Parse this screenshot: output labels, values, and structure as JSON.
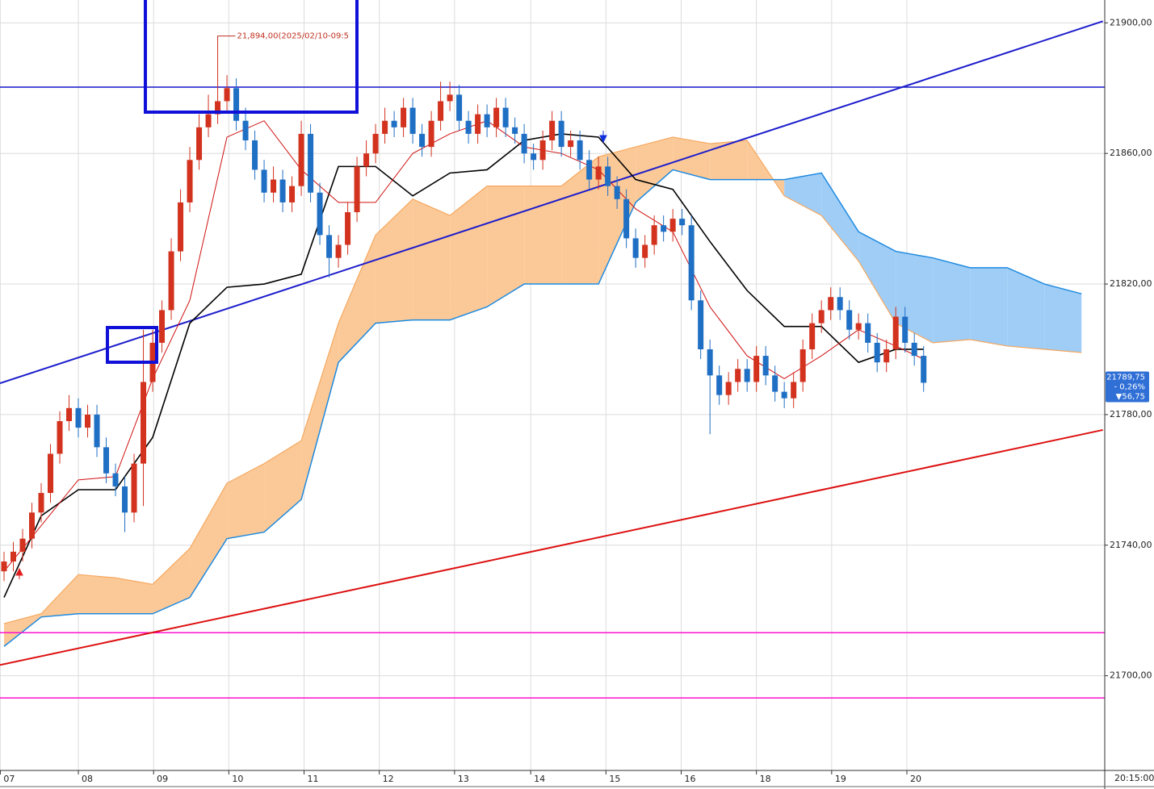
{
  "chart_data": {
    "type": "candlestick",
    "up_color": "#d2321e",
    "down_color": "#1f6fc4",
    "open": [
      21732,
      21735,
      21738,
      21742,
      21750,
      21756,
      21768,
      21778,
      21782,
      21776,
      21780,
      21770,
      21762,
      21758,
      21750,
      21765,
      21790,
      21802,
      21812,
      21830,
      21845,
      21858,
      21868,
      21872,
      21876,
      21880,
      21870,
      21864,
      21855,
      21848,
      21852,
      21845,
      21850,
      21866,
      21848,
      21835,
      21828,
      21832,
      21842,
      21856,
      21860,
      21866,
      21870,
      21868,
      21874,
      21866,
      21862,
      21870,
      21876,
      21878,
      21870,
      21866,
      21872,
      21868,
      21874,
      21868,
      21866,
      21860,
      21858,
      21864,
      21870,
      21862,
      21864,
      21858,
      21852,
      21856,
      21850,
      21846,
      21834,
      21828,
      21832,
      21838,
      21836,
      21840,
      21838,
      21815,
      21800,
      21792,
      21786,
      21790,
      21794,
      21790,
      21798,
      21792,
      21787,
      21785,
      21790,
      21800,
      21808,
      21812,
      21816,
      21812,
      21806,
      21808,
      21802,
      21796,
      21800,
      21810,
      21802,
      21798
    ],
    "high": [
      21738,
      21741,
      21745,
      21753,
      21759,
      21771,
      21781,
      21786,
      21785,
      21783,
      21783,
      21773,
      21765,
      21761,
      21768,
      21806,
      21806,
      21815,
      21834,
      21849,
      21862,
      21872,
      21878,
      21894,
      21884,
      21883,
      21874,
      21867,
      21858,
      21856,
      21855,
      21853,
      21870,
      21869,
      21851,
      21838,
      21835,
      21845,
      21859,
      21864,
      21869,
      21874,
      21873,
      21877,
      21877,
      21869,
      21873,
      21882,
      21882,
      21881,
      21873,
      21875,
      21875,
      21877,
      21877,
      21871,
      21869,
      21863,
      21867,
      21873,
      21873,
      21867,
      21867,
      21861,
      21859,
      21859,
      21853,
      21849,
      21837,
      21835,
      21841,
      21841,
      21843,
      21843,
      21841,
      21818,
      21803,
      21795,
      21793,
      21797,
      21797,
      21801,
      21801,
      21795,
      21790,
      21793,
      21803,
      21811,
      21815,
      21819,
      21819,
      21815,
      21811,
      21811,
      21805,
      21803,
      21813,
      21813,
      21805,
      21801
    ],
    "low": [
      21729,
      21732,
      21735,
      21739,
      21747,
      21753,
      21765,
      21775,
      21773,
      21773,
      21767,
      21759,
      21755,
      21744,
      21747,
      21752,
      21787,
      21799,
      21809,
      21827,
      21842,
      21855,
      21865,
      21869,
      21873,
      21867,
      21861,
      21852,
      21845,
      21845,
      21842,
      21842,
      21847,
      21845,
      21832,
      21822,
      21825,
      21829,
      21839,
      21853,
      21857,
      21863,
      21865,
      21865,
      21863,
      21859,
      21859,
      21867,
      21873,
      21867,
      21863,
      21863,
      21865,
      21865,
      21865,
      21863,
      21857,
      21855,
      21855,
      21861,
      21859,
      21859,
      21855,
      21849,
      21849,
      21847,
      21843,
      21831,
      21825,
      21825,
      21829,
      21833,
      21833,
      21835,
      21812,
      21797,
      21774,
      21783,
      21783,
      21787,
      21787,
      21787,
      21789,
      21784,
      21782,
      21782,
      21787,
      21797,
      21805,
      21809,
      21809,
      21803,
      21803,
      21799,
      21793,
      21793,
      21797,
      21799,
      21795,
      21787
    ],
    "close": [
      21735,
      21738,
      21742,
      21750,
      21756,
      21768,
      21778,
      21782,
      21776,
      21780,
      21770,
      21762,
      21758,
      21750,
      21765,
      21790,
      21802,
      21812,
      21830,
      21845,
      21858,
      21868,
      21872,
      21876,
      21880,
      21870,
      21864,
      21855,
      21848,
      21852,
      21845,
      21850,
      21866,
      21848,
      21835,
      21828,
      21832,
      21842,
      21856,
      21860,
      21866,
      21870,
      21868,
      21874,
      21866,
      21862,
      21870,
      21876,
      21878,
      21870,
      21866,
      21872,
      21868,
      21874,
      21868,
      21866,
      21860,
      21858,
      21864,
      21870,
      21862,
      21864,
      21858,
      21852,
      21856,
      21850,
      21846,
      21834,
      21828,
      21832,
      21838,
      21836,
      21840,
      21838,
      21815,
      21800,
      21792,
      21786,
      21790,
      21794,
      21790,
      21798,
      21792,
      21787,
      21785,
      21790,
      21800,
      21808,
      21812,
      21816,
      21812,
      21806,
      21808,
      21802,
      21796,
      21800,
      21810,
      21802,
      21798,
      21789.75
    ],
    "overlays": [
      {
        "color": "#000000",
        "x": [
          0,
          4,
          8,
          12,
          16,
          20,
          24,
          28,
          32,
          36,
          40,
          44,
          48,
          52,
          56,
          60,
          64,
          68,
          72,
          76,
          80,
          84,
          88,
          92,
          96,
          99
        ],
        "values": [
          21724,
          21749,
          21757,
          21757,
          21773,
          21808,
          21819,
          21820,
          21823,
          21856,
          21856,
          21847,
          21854,
          21855,
          21864,
          21866,
          21865,
          21852,
          21849,
          21833,
          21818,
          21807,
          21807,
          21796,
          21800,
          21800
        ]
      },
      {
        "color": "#d01010",
        "x": [
          0,
          4,
          8,
          12,
          16,
          20,
          24,
          28,
          32,
          36,
          40,
          44,
          48,
          52,
          56,
          60,
          64,
          68,
          72,
          76,
          80,
          84,
          88,
          92,
          96,
          99
        ],
        "values": [
          21732,
          21746,
          21760,
          21761,
          21791,
          21815,
          21865,
          21870,
          21855,
          21845,
          21845,
          21860,
          21866,
          21870,
          21862,
          21860,
          21855,
          21843,
          21836,
          21813,
          21798,
          21791,
          21798,
          21806,
          21801,
          21797
        ]
      }
    ],
    "cloud": {
      "x": [
        0,
        4,
        8,
        12,
        16,
        20,
        24,
        28,
        32,
        36,
        40,
        44,
        48,
        52,
        56,
        60,
        64,
        68,
        72,
        76,
        80,
        84,
        88,
        92,
        96,
        100,
        104,
        108,
        112,
        116
      ],
      "span_a": [
        21716,
        21719,
        21731,
        21730,
        21728,
        21739,
        21759,
        21765,
        21772,
        21808,
        21835,
        21846,
        21841,
        21850,
        21850,
        21850,
        21859,
        21862,
        21865,
        21863,
        21864,
        21847,
        21841,
        21827,
        21808,
        21802,
        21803,
        21801,
        21800,
        21799
      ],
      "span_b": [
        21709,
        21718,
        21719,
        21719,
        21719,
        21724,
        21742,
        21744,
        21754,
        21796,
        21808,
        21809,
        21809,
        21813,
        21820,
        21820,
        21820,
        21845,
        21855,
        21852,
        21852,
        21852,
        21854,
        21836,
        21830,
        21828,
        21825,
        21825,
        21820,
        21817
      ],
      "a_color": "#f5a860",
      "b_color": "#1e8ae0",
      "a_fill": "#fbc997",
      "b_fill": "#9fcdf6"
    },
    "hlines": [
      {
        "value": 21880.3,
        "color": "#1414c8"
      },
      {
        "value": 21713.2,
        "color": "#ff10d0"
      },
      {
        "value": 21693.2,
        "color": "#ff10d0"
      }
    ],
    "trendlines": [
      {
        "x": [
          -0.435,
          118.3
        ],
        "values": [
          21789.6,
          21900.5
        ],
        "color": "#1c1ccc"
      },
      {
        "x": [
          -0.435,
          118.3
        ],
        "values": [
          21703.3,
          21775.3
        ],
        "color": "#dd1111"
      }
    ],
    "annotation": "21,894,00(2025/02/10-09:5",
    "price_tag": [
      "21789,75",
      "- 0,26%",
      "▼56,75"
    ],
    "xlim": [
      -0.435,
      118.5
    ],
    "ylim": [
      21671,
      21907
    ],
    "yticks": [
      {
        "value": 21700,
        "label": "21700,00"
      },
      {
        "value": 21740,
        "label": "21740,00"
      },
      {
        "value": 21780,
        "label": "21780,00"
      },
      {
        "value": 21820,
        "label": "21820,00"
      },
      {
        "value": 21860,
        "label": "21860,00"
      },
      {
        "value": 21900,
        "label": "21900,00"
      }
    ],
    "xticks": [
      {
        "value": -0.4,
        "label": "07"
      },
      {
        "value": 8,
        "label": "08"
      },
      {
        "value": 16.1,
        "label": "09"
      },
      {
        "value": 24.2,
        "label": "10"
      },
      {
        "value": 32.3,
        "label": "11"
      },
      {
        "value": 40.4,
        "label": "12"
      },
      {
        "value": 48.5,
        "label": "13"
      },
      {
        "value": 56.7,
        "label": "14"
      },
      {
        "value": 64.8,
        "label": "15"
      },
      {
        "value": 72.9,
        "label": "16"
      },
      {
        "value": 81,
        "label": "18"
      },
      {
        "value": 89.1,
        "label": "19"
      },
      {
        "value": 97.2,
        "label": "20"
      }
    ],
    "x_end_label": "20:15:00",
    "grid": true
  }
}
